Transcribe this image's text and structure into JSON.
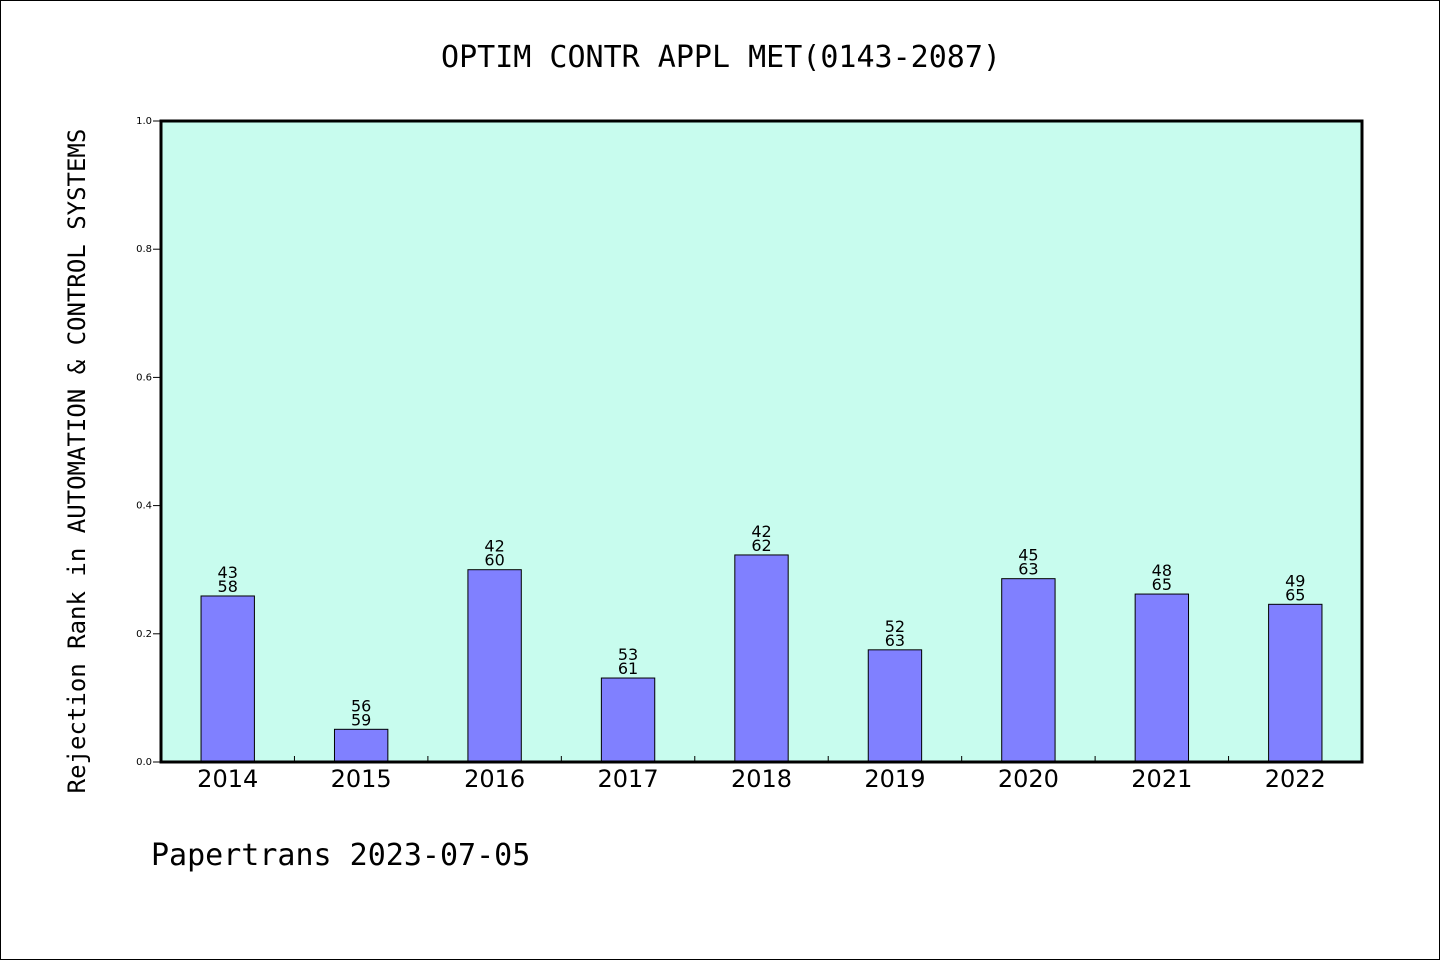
{
  "chart_data": {
    "type": "bar",
    "title": "OPTIM CONTR APPL MET(0143-2087)",
    "ylabel": "Rejection Rank in AUTOMATION & CONTROL SYSTEMS",
    "xlabel": "",
    "ylim": [
      0.0,
      1.0
    ],
    "yticks": [
      "0.0",
      "0.2",
      "0.4",
      "0.6",
      "0.8",
      "1.0"
    ],
    "categories": [
      "2014",
      "2015",
      "2016",
      "2017",
      "2018",
      "2019",
      "2020",
      "2021",
      "2022"
    ],
    "values": [
      0.259,
      0.051,
      0.3,
      0.131,
      0.323,
      0.175,
      0.286,
      0.262,
      0.246
    ],
    "labels_top": [
      "43",
      "56",
      "42",
      "53",
      "42",
      "52",
      "45",
      "48",
      "49"
    ],
    "labels_bottom": [
      "58",
      "59",
      "60",
      "61",
      "62",
      "63",
      "63",
      "65",
      "65"
    ],
    "grid": false,
    "colors": {
      "plot_background": "#c8fcee",
      "bar_fill": "#8080ff",
      "bar_stroke": "#000000"
    }
  },
  "footer": "Papertrans 2023-07-05"
}
